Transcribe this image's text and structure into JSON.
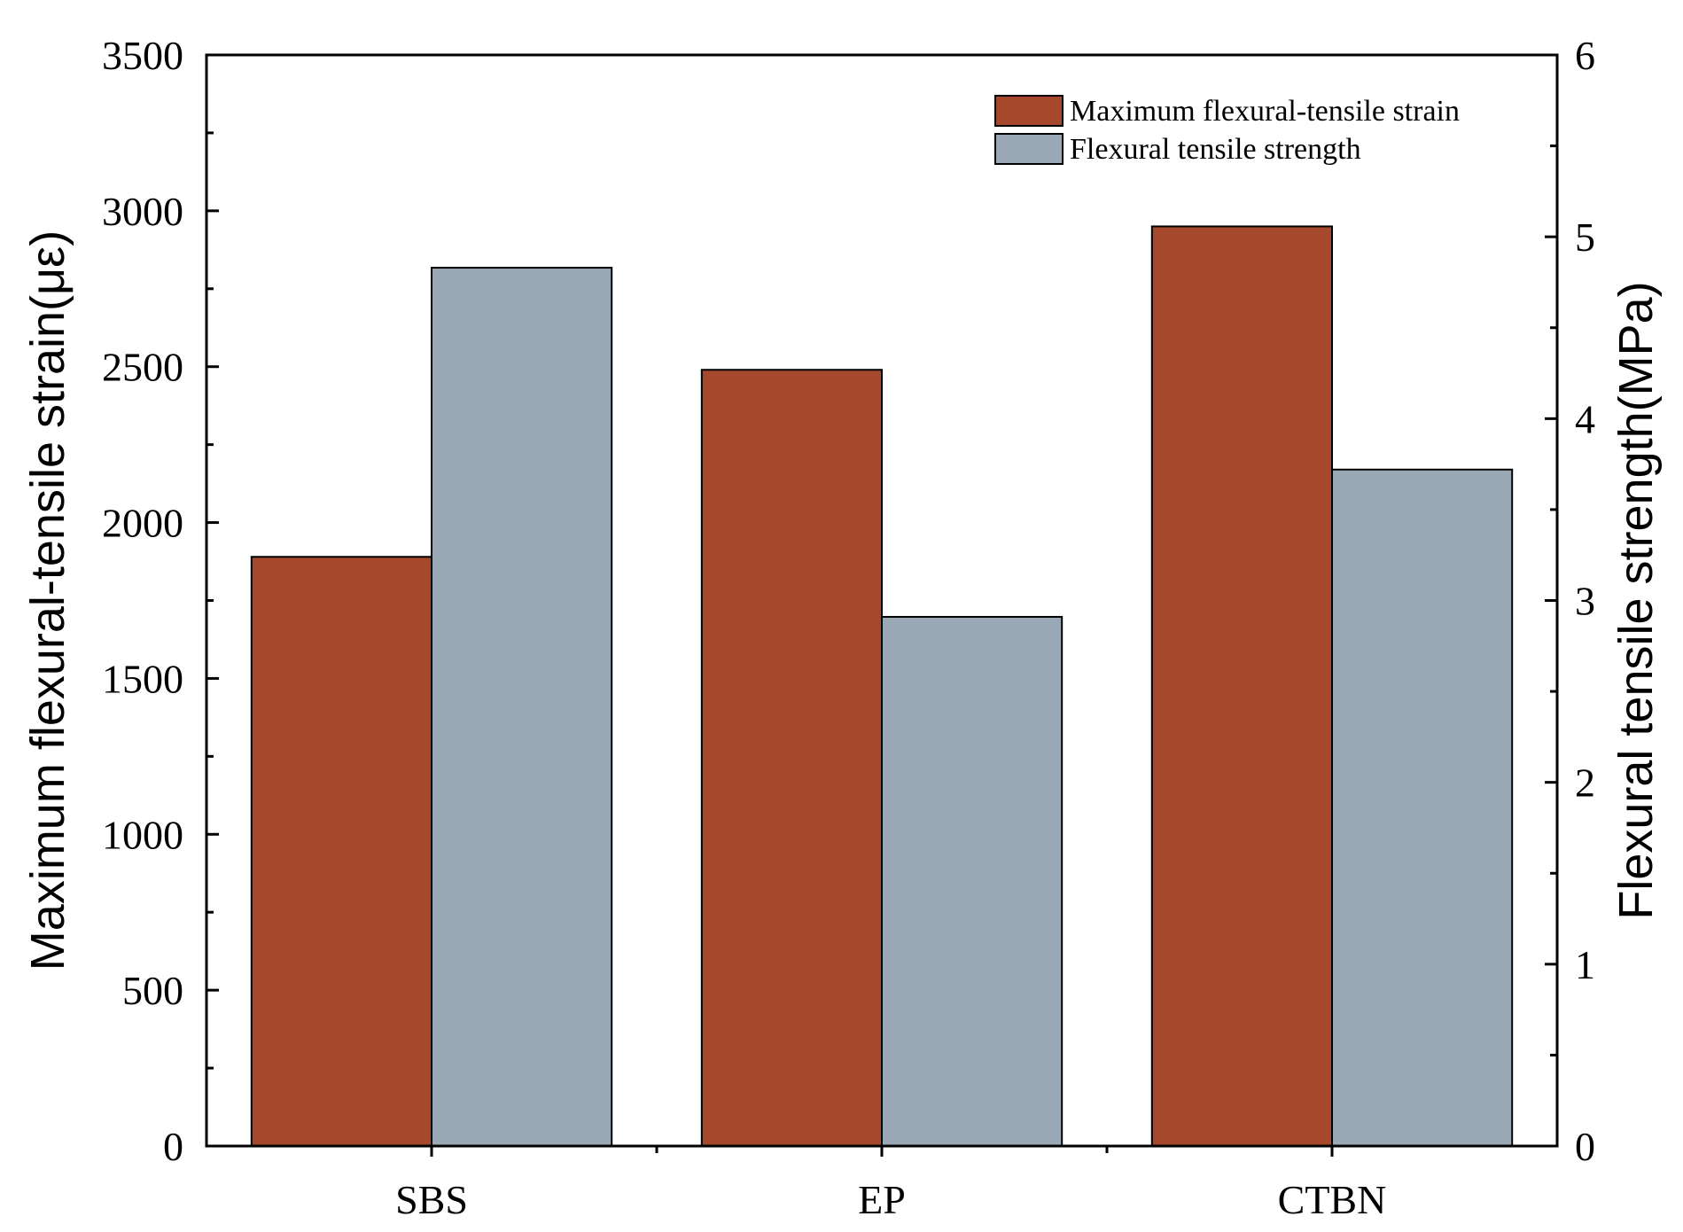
{
  "chart_data": {
    "type": "bar",
    "categories": [
      "SBS",
      "EP",
      "CTBN"
    ],
    "series": [
      {
        "name": "Maximum flexural-tensile strain",
        "axis": "left",
        "color": "#a5482b",
        "values": [
          1890,
          2490,
          2950
        ]
      },
      {
        "name": "Flexural tensile strength",
        "axis": "right",
        "color": "#9ba8b6",
        "values": [
          4.83,
          2.91,
          3.72
        ]
      }
    ],
    "ylabel": "Maximum flexural-tensile strain(με)",
    "ylabel_right": "Flexural tensile strength(MPa)",
    "ylim": [
      0,
      3500
    ],
    "ylim_right": [
      0,
      6
    ],
    "yticks": [
      0,
      500,
      1000,
      1500,
      2000,
      2500,
      3000,
      3500
    ],
    "yticks_right": [
      0,
      1,
      2,
      3,
      4,
      5,
      6
    ],
    "grid": false,
    "legend_position": "top-right"
  }
}
